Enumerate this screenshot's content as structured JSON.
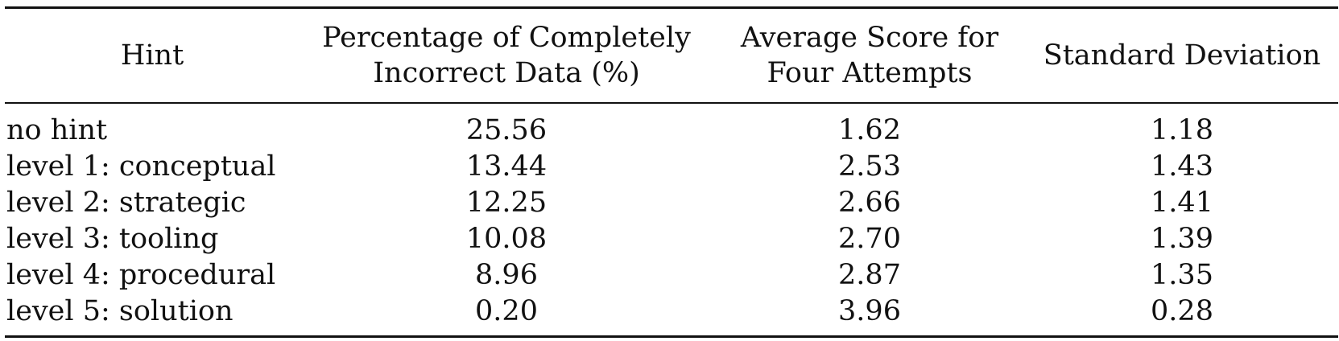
{
  "table": {
    "headers": [
      {
        "lines": [
          "Hint"
        ]
      },
      {
        "lines": [
          "Percentage of Completely",
          "Incorrect Data (%)"
        ]
      },
      {
        "lines": [
          "Average Score for",
          "Four Attempts"
        ]
      },
      {
        "lines": [
          "Standard Deviation"
        ]
      }
    ],
    "rows": [
      [
        "no hint",
        "25.56",
        "1.62",
        "1.18"
      ],
      [
        "level 1: conceptual",
        "13.44",
        "2.53",
        "1.43"
      ],
      [
        "level 2: strategic",
        "12.25",
        "2.66",
        "1.41"
      ],
      [
        "level 3: tooling",
        "10.08",
        "2.70",
        "1.39"
      ],
      [
        "level 4: procedural",
        "8.96",
        "2.87",
        "1.35"
      ],
      [
        "level 5: solution",
        "0.20",
        "3.96",
        "0.28"
      ]
    ]
  }
}
